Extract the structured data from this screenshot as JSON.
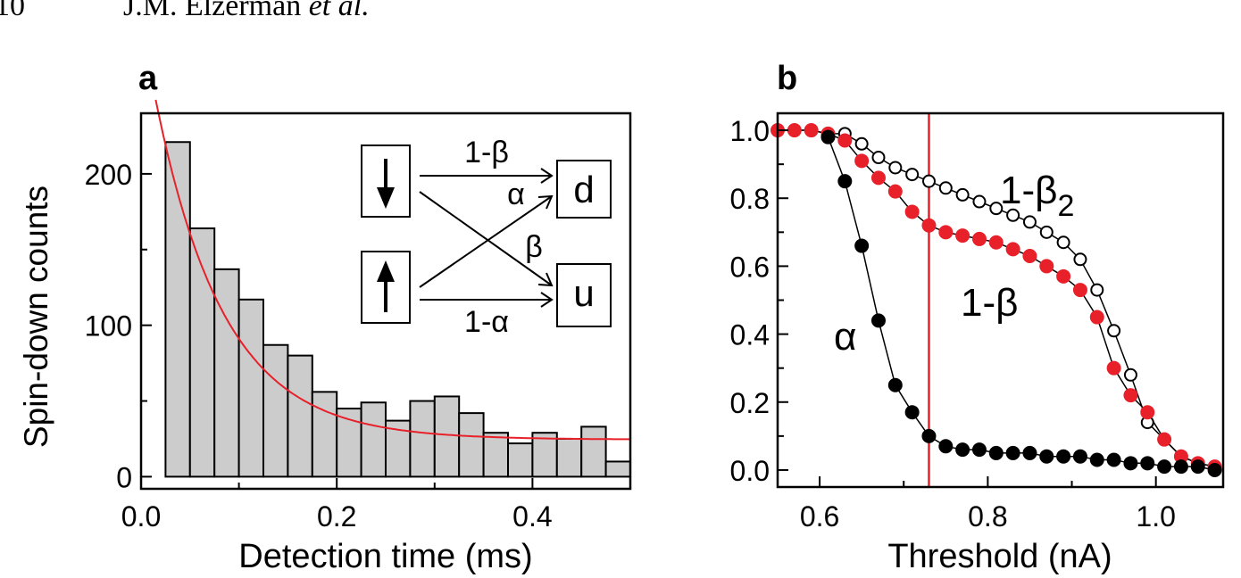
{
  "page_header": {
    "page_number": "10",
    "authors": "J.M. Elzerman",
    "authors_suffix": "et al."
  },
  "chart_data": [
    {
      "panel_label": "a",
      "type": "bar",
      "xlabel": "Detection time (ms)",
      "ylabel": "Spin-down counts",
      "xlim": [
        0.0,
        0.5
      ],
      "ylim": [
        -8,
        240
      ],
      "x_ticks": [
        "0.0",
        "0.2",
        "0.4"
      ],
      "y_ticks": [
        "0",
        "100",
        "200"
      ],
      "bin_width": 0.025,
      "bin_starts": [
        0.025,
        0.05,
        0.075,
        0.1,
        0.125,
        0.15,
        0.175,
        0.2,
        0.225,
        0.25,
        0.275,
        0.3,
        0.325,
        0.35,
        0.375,
        0.4,
        0.425,
        0.45,
        0.475
      ],
      "values": [
        221,
        164,
        137,
        117,
        87,
        80,
        56,
        45,
        49,
        37,
        50,
        53,
        42,
        29,
        22,
        29,
        25,
        33,
        10
      ],
      "fit": {
        "label": "exponential fit",
        "amplitude": 278,
        "decay_ms": 0.07,
        "offset": 24.5,
        "x_range": [
          0.015,
          0.5
        ]
      },
      "bar_fill": "#cccccc",
      "fit_color": "#e8202a",
      "inset": {
        "states": [
          {
            "id": "down",
            "icon": "down-arrow-icon"
          },
          {
            "id": "up",
            "icon": "up-arrow-icon"
          }
        ],
        "outcomes": [
          "d",
          "u"
        ],
        "labels": {
          "top": "1-β",
          "alpha": "α",
          "beta": "β",
          "bottom": "1-α"
        }
      }
    },
    {
      "panel_label": "b",
      "type": "scatter",
      "xlabel": "Threshold (nA)",
      "ylabel": "",
      "xlim": [
        0.55,
        1.08
      ],
      "ylim": [
        -0.05,
        1.05
      ],
      "x_ticks": [
        "0.6",
        "0.8",
        "1.0"
      ],
      "y_ticks": [
        "0.0",
        "0.2",
        "0.4",
        "0.6",
        "0.8",
        "1.0"
      ],
      "threshold_line": {
        "x": 0.73,
        "color": "#e8202a"
      },
      "series": [
        {
          "name": "1-β",
          "subscript": "2",
          "style": "open-black",
          "x": [
            0.55,
            0.57,
            0.59,
            0.61,
            0.63,
            0.65,
            0.67,
            0.69,
            0.71,
            0.73,
            0.75,
            0.77,
            0.79,
            0.81,
            0.83,
            0.85,
            0.87,
            0.89,
            0.91,
            0.93,
            0.95,
            0.97,
            0.99,
            1.01,
            1.03,
            1.05,
            1.07
          ],
          "y": [
            1.0,
            1.0,
            1.0,
            0.99,
            0.99,
            0.96,
            0.92,
            0.89,
            0.87,
            0.85,
            0.83,
            0.81,
            0.79,
            0.77,
            0.75,
            0.73,
            0.7,
            0.67,
            0.62,
            0.53,
            0.41,
            0.28,
            0.14,
            0.09,
            0.04,
            0.02,
            0.01
          ]
        },
        {
          "name": "1-β",
          "style": "filled-red",
          "x": [
            0.55,
            0.57,
            0.59,
            0.61,
            0.63,
            0.65,
            0.67,
            0.69,
            0.71,
            0.73,
            0.75,
            0.77,
            0.79,
            0.81,
            0.83,
            0.85,
            0.87,
            0.89,
            0.91,
            0.93,
            0.95,
            0.97,
            0.99,
            1.01,
            1.03,
            1.05,
            1.07
          ],
          "y": [
            1.0,
            1.0,
            1.0,
            0.99,
            0.97,
            0.91,
            0.86,
            0.82,
            0.76,
            0.72,
            0.7,
            0.69,
            0.68,
            0.67,
            0.65,
            0.63,
            0.6,
            0.57,
            0.53,
            0.45,
            0.3,
            0.22,
            0.17,
            0.09,
            0.04,
            0.02,
            0.01
          ]
        },
        {
          "name": "α",
          "style": "filled-black",
          "x": [
            0.61,
            0.63,
            0.65,
            0.67,
            0.69,
            0.71,
            0.73,
            0.75,
            0.77,
            0.79,
            0.81,
            0.83,
            0.85,
            0.87,
            0.89,
            0.91,
            0.93,
            0.95,
            0.97,
            0.99,
            1.01,
            1.03,
            1.05,
            1.07
          ],
          "y": [
            0.98,
            0.85,
            0.66,
            0.44,
            0.25,
            0.17,
            0.1,
            0.07,
            0.06,
            0.06,
            0.05,
            0.05,
            0.05,
            0.04,
            0.04,
            0.04,
            0.03,
            0.03,
            0.02,
            0.02,
            0.01,
            0.01,
            0.01,
            0.0
          ]
        }
      ],
      "colors": {
        "red": "#e8202a",
        "black": "#000000"
      }
    }
  ]
}
